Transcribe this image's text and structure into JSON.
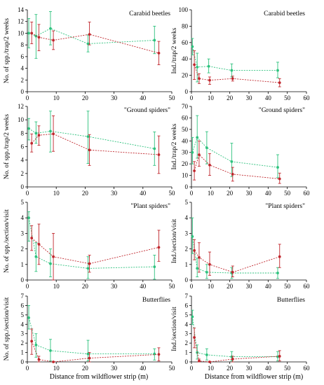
{
  "figure": {
    "xlabel": "Distance from wildflower strip (m)",
    "colors": {
      "green": "#2ec27e",
      "red": "#c0262c"
    }
  },
  "chart_data": [
    {
      "type": "line",
      "title": "Carabid beetles",
      "ylabel": "No. of spp./trap/2 weeks",
      "xlim": [
        0,
        50
      ],
      "ylim": [
        0,
        14
      ],
      "yticks": [
        0,
        2,
        4,
        6,
        8,
        10,
        12,
        14
      ],
      "xticks": [
        0,
        10,
        20,
        30,
        40,
        50
      ],
      "series": [
        {
          "color": "green",
          "x": [
            0.5,
            3,
            8,
            21,
            44
          ],
          "y": [
            10,
            9.5,
            10.8,
            8.2,
            8.8
          ],
          "lo": [
            7.5,
            5.7,
            8,
            6.8,
            6.5
          ],
          "hi": [
            12.5,
            13.2,
            13.7,
            9.7,
            11.2
          ]
        },
        {
          "color": "red",
          "x": [
            1.5,
            4,
            9,
            21.5,
            45.5
          ],
          "y": [
            10,
            9.3,
            8.8,
            9.8,
            6.6
          ],
          "lo": [
            8.2,
            7,
            7.2,
            8,
            4.6
          ],
          "hi": [
            11.9,
            11.5,
            10.4,
            11.9,
            8.6
          ]
        }
      ]
    },
    {
      "type": "line",
      "title": "Carabid beetles",
      "ylabel": "Ind./trap/2 weeks",
      "xlim": [
        0,
        60
      ],
      "ylim": [
        0,
        100
      ],
      "yticks": [
        0,
        20,
        40,
        60,
        80,
        100
      ],
      "xticks": [
        0,
        10,
        20,
        30,
        40,
        50,
        60
      ],
      "series": [
        {
          "color": "green",
          "x": [
            0.5,
            3,
            9,
            21,
            45
          ],
          "y": [
            55,
            30,
            31,
            26,
            26
          ],
          "lo": [
            45,
            12,
            23,
            18,
            17
          ],
          "hi": [
            65,
            47,
            40,
            34,
            36
          ]
        },
        {
          "color": "red",
          "x": [
            1.5,
            4,
            9.5,
            21.5,
            46
          ],
          "y": [
            33,
            16,
            14,
            16,
            11
          ],
          "lo": [
            15,
            10,
            9,
            13,
            6
          ],
          "hi": [
            50,
            22,
            18,
            19,
            16
          ]
        }
      ]
    },
    {
      "type": "line",
      "title": "\"Ground spiders\"",
      "ylabel": "No. of spp./trap/2 weeks",
      "xlim": [
        0,
        50
      ],
      "ylim": [
        0,
        12
      ],
      "yticks": [
        0,
        2,
        4,
        6,
        8,
        10,
        12
      ],
      "xticks": [
        0,
        10,
        20,
        30,
        40,
        50
      ],
      "series": [
        {
          "color": "green",
          "x": [
            0.5,
            3,
            8,
            21,
            44
          ],
          "y": [
            8.7,
            8,
            8.3,
            7.5,
            5.7
          ],
          "lo": [
            7,
            6.5,
            5.2,
            3.5,
            3.2
          ],
          "hi": [
            10.2,
            9.7,
            11.3,
            11.3,
            8.2
          ]
        },
        {
          "color": "red",
          "x": [
            1.5,
            4,
            9,
            21.5,
            45.5
          ],
          "y": [
            6.5,
            7.7,
            7.9,
            5.5,
            4.8
          ],
          "lo": [
            5.2,
            6.2,
            5.3,
            3.2,
            2
          ],
          "hi": [
            7.9,
            9.1,
            10.6,
            7.8,
            7.6
          ]
        }
      ]
    },
    {
      "type": "line",
      "title": "\"Ground spiders\"",
      "ylabel": "Ind./trap/2 weeks",
      "xlim": [
        0,
        60
      ],
      "ylim": [
        0,
        70
      ],
      "yticks": [
        0,
        10,
        20,
        30,
        40,
        50,
        60,
        70
      ],
      "xticks": [
        0,
        10,
        20,
        30,
        40,
        50,
        60
      ],
      "series": [
        {
          "color": "green",
          "x": [
            0.5,
            3,
            8,
            21,
            45
          ],
          "y": [
            30,
            43,
            34,
            22,
            17
          ],
          "lo": [
            20,
            25,
            20,
            9,
            8
          ],
          "hi": [
            43,
            62,
            48,
            38,
            28
          ]
        },
        {
          "color": "red",
          "x": [
            1.5,
            4,
            9.5,
            21.5,
            46
          ],
          "y": [
            14,
            28,
            19,
            11,
            7
          ],
          "lo": [
            6,
            18,
            10,
            5,
            3
          ],
          "hi": [
            22,
            40,
            29,
            17,
            12
          ]
        }
      ]
    },
    {
      "type": "line",
      "title": "\"Plant spiders\"",
      "ylabel": "No. of spp./section/visit",
      "xlim": [
        0,
        50
      ],
      "ylim": [
        0,
        5
      ],
      "yticks": [
        0,
        1,
        2,
        3,
        4,
        5
      ],
      "xticks": [
        0,
        10,
        20,
        30,
        40,
        50
      ],
      "series": [
        {
          "color": "green",
          "x": [
            0.5,
            3,
            8,
            21,
            44
          ],
          "y": [
            4,
            1.5,
            1.05,
            0.75,
            0.85
          ],
          "lo": [
            2.5,
            0.55,
            0.2,
            0.1,
            0.05
          ],
          "hi": [
            4.4,
            2.4,
            2,
            1.5,
            1.6
          ]
        },
        {
          "color": "red",
          "x": [
            1.5,
            4,
            9,
            21.5,
            45.5
          ],
          "y": [
            2.7,
            2.3,
            1.5,
            1.05,
            2.1
          ],
          "lo": [
            1.9,
            1,
            0,
            0.5,
            1.2
          ],
          "hi": [
            3.5,
            3.6,
            3,
            1.6,
            3.2
          ]
        }
      ]
    },
    {
      "type": "line",
      "title": "\"Plant spiders\"",
      "ylabel": "Ind./section/visit",
      "xlim": [
        0,
        60
      ],
      "ylim": [
        0,
        5
      ],
      "yticks": [
        0,
        1,
        2,
        3,
        4,
        5
      ],
      "xticks": [
        0,
        10,
        20,
        30,
        40,
        50,
        60
      ],
      "series": [
        {
          "color": "green",
          "x": [
            0.5,
            3,
            8,
            21,
            45
          ],
          "y": [
            2.8,
            0.75,
            0.5,
            0.45,
            0.45
          ],
          "lo": [
            1.7,
            0.2,
            0.1,
            0.1,
            0.1
          ],
          "hi": [
            4,
            1.4,
            1,
            0.8,
            0.8
          ]
        },
        {
          "color": "red",
          "x": [
            1.5,
            4,
            9.5,
            21.5,
            46
          ],
          "y": [
            1.9,
            1.45,
            1,
            0.5,
            1.5
          ],
          "lo": [
            1.3,
            0.5,
            0.3,
            0.2,
            0.8
          ],
          "hi": [
            2.6,
            2.4,
            1.8,
            0.9,
            2.3
          ]
        }
      ]
    },
    {
      "type": "line",
      "title": "Butterflies",
      "ylabel": "No. of spp./section/visit",
      "xlim": [
        0,
        50
      ],
      "ylim": [
        0,
        7
      ],
      "yticks": [
        0,
        1,
        2,
        3,
        4,
        5,
        6,
        7
      ],
      "xticks": [
        0,
        10,
        20,
        30,
        40,
        50
      ],
      "series": [
        {
          "color": "green",
          "x": [
            0.5,
            3,
            8,
            21,
            44
          ],
          "y": [
            4.7,
            1.8,
            1.2,
            0.85,
            0.85
          ],
          "lo": [
            3.5,
            0.5,
            0.1,
            0.1,
            0.2
          ],
          "hi": [
            6,
            3,
            2.4,
            2.3,
            1.4
          ]
        },
        {
          "color": "red",
          "x": [
            1.5,
            4,
            9,
            21.5,
            45.5
          ],
          "y": [
            2.2,
            0.25,
            0,
            0.4,
            0.8
          ],
          "lo": [
            0.8,
            0,
            0,
            0,
            0.1
          ],
          "hi": [
            3.5,
            0.6,
            0,
            1,
            1.5
          ]
        }
      ]
    },
    {
      "type": "line",
      "title": "Butterflies",
      "ylabel": "Ind./section/visit",
      "xlim": [
        0,
        60
      ],
      "ylim": [
        0,
        7
      ],
      "yticks": [
        0,
        1,
        2,
        3,
        4,
        5,
        6,
        7
      ],
      "xticks": [
        0,
        10,
        20,
        30,
        40,
        50,
        60
      ],
      "series": [
        {
          "color": "green",
          "x": [
            0.5,
            3,
            8,
            21,
            45
          ],
          "y": [
            4.8,
            1,
            0.75,
            0.55,
            0.55
          ],
          "lo": [
            4,
            0.3,
            0.2,
            0.1,
            0.1
          ],
          "hi": [
            5.5,
            1.8,
            1.4,
            1.1,
            1.1
          ]
        },
        {
          "color": "red",
          "x": [
            1.5,
            4,
            9.5,
            21.5,
            46
          ],
          "y": [
            2.6,
            0.1,
            0,
            0.3,
            0.6
          ],
          "lo": [
            1.5,
            0,
            0,
            0,
            0.1
          ],
          "hi": [
            3.6,
            0.3,
            0,
            0.6,
            1.2
          ]
        }
      ]
    }
  ]
}
